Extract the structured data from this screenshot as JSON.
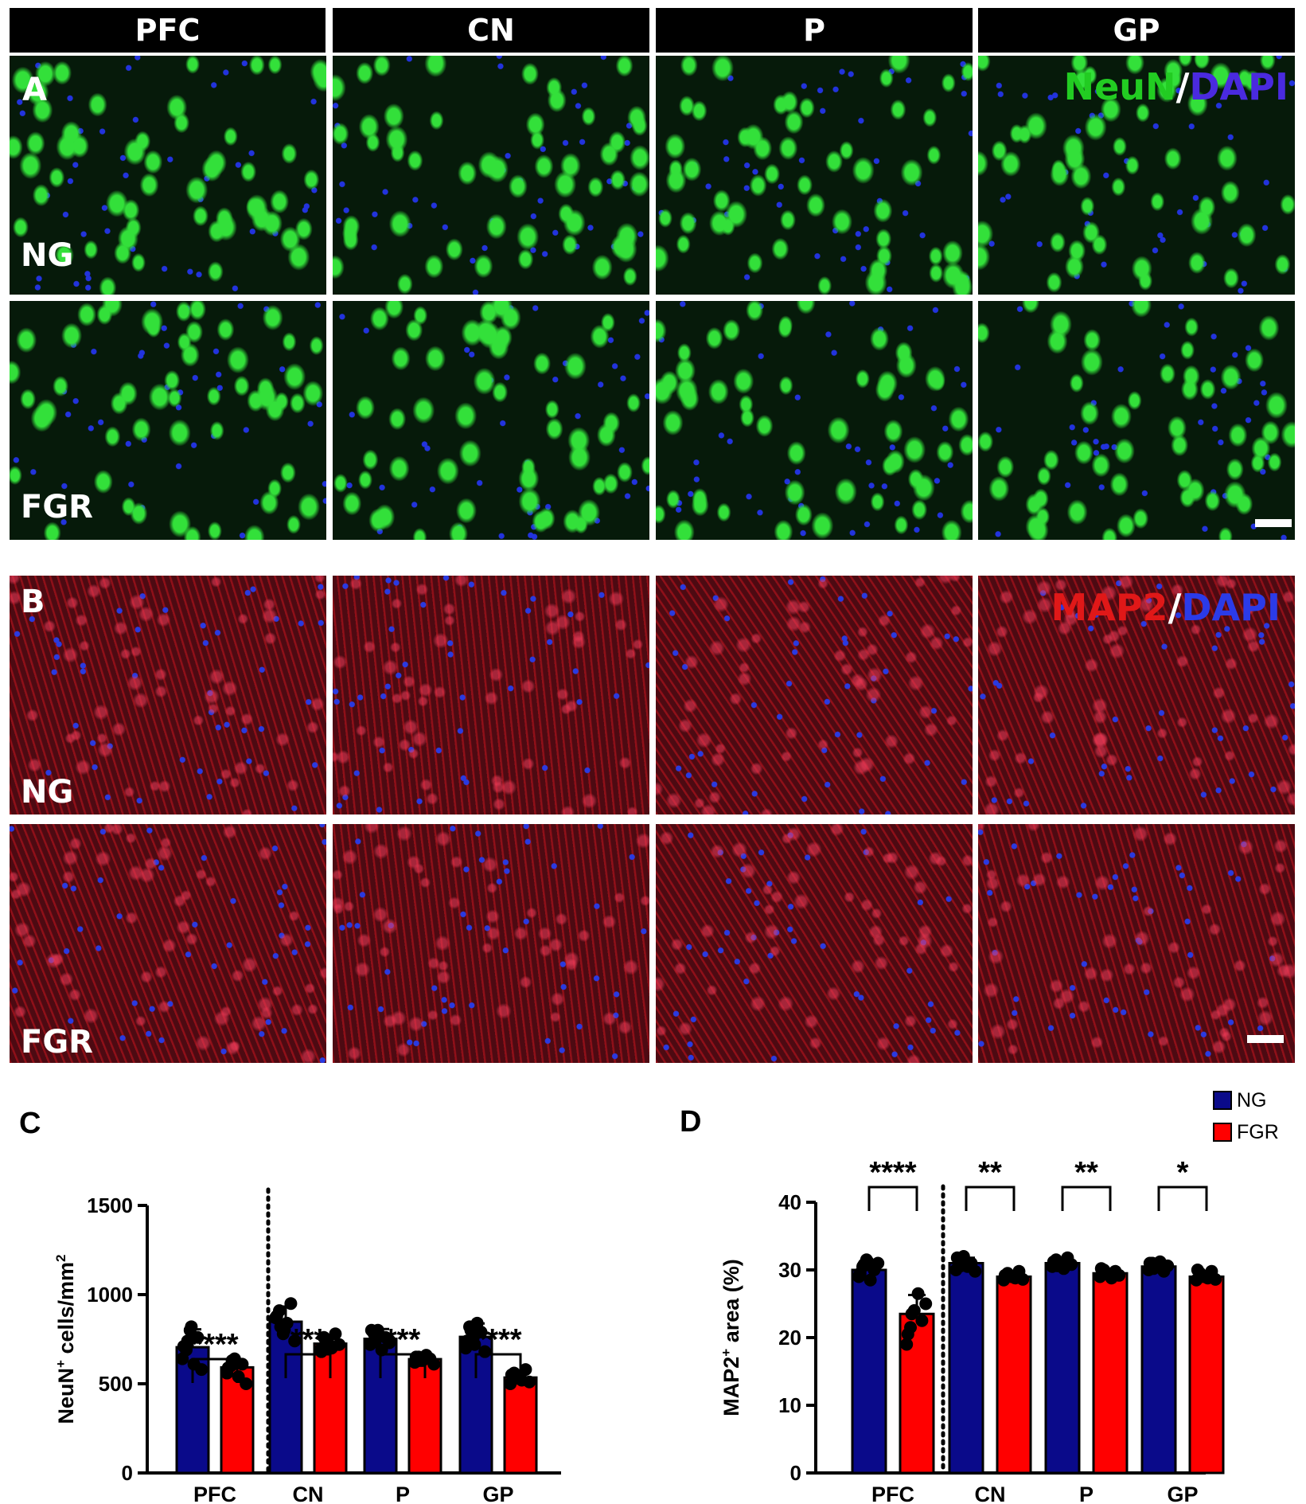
{
  "region_headers": [
    "PFC",
    "CN",
    "P",
    "GP"
  ],
  "panel_A": {
    "label": "A",
    "stain_1": "NeuN",
    "stain_sep": "/",
    "stain_2": "DAPI",
    "row_1": "NG",
    "row_2": "FGR",
    "colors": {
      "stain_1": "#22cc22",
      "stain_2": "#4a2adf",
      "background": "#061a0a",
      "cells": "#33e03a",
      "nuclei": "#2233dd"
    }
  },
  "panel_B": {
    "label": "B",
    "stain_1": "MAP2",
    "stain_sep": "/",
    "stain_2": "DAPI",
    "row_1": "NG",
    "row_2": "FGR",
    "colors": {
      "stain_1": "#e01818",
      "stain_2": "#2b3be8",
      "background": "#4a0a12",
      "fibers": "#c8141e",
      "nuclei": "#2a3ae0"
    }
  },
  "legend": {
    "items": [
      {
        "label": "NG",
        "color": "#0a0a8a"
      },
      {
        "label": "FGR",
        "color": "#ff0000"
      }
    ]
  },
  "chart_data": [
    {
      "panel": "C",
      "type": "bar",
      "categories": [
        "PFC",
        "CN",
        "P",
        "GP"
      ],
      "ylabel_main": "NeuN",
      "ylabel_sup": "+",
      "ylabel_rest": " cells/mm",
      "ylabel_sup2": "2",
      "ylim": [
        0,
        1500
      ],
      "yticks": [
        0,
        500,
        1000,
        1500
      ],
      "series": [
        {
          "name": "NG",
          "color": "#0a0a8a",
          "values": [
            705,
            848,
            752,
            763
          ]
        },
        {
          "name": "FGR",
          "color": "#ff0000",
          "values": [
            592,
            725,
            638,
            535
          ]
        }
      ],
      "errors": {
        "NG": [
          100,
          85,
          55,
          75
        ],
        "FGR": [
          40,
          45,
          25,
          35
        ]
      },
      "points": {
        "NG": [
          [
            640,
            690,
            800,
            610,
            760,
            580,
            710,
            740,
            820
          ],
          [
            870,
            910,
            780,
            840,
            950,
            740,
            880,
            820,
            800
          ],
          [
            720,
            780,
            800,
            690,
            760,
            730,
            800,
            740,
            770
          ],
          [
            700,
            820,
            760,
            840,
            790,
            680,
            740,
            800,
            720
          ]
        ],
        "FGR": [
          [
            560,
            600,
            640,
            540,
            610,
            500,
            590,
            630
          ],
          [
            690,
            760,
            740,
            700,
            780,
            720,
            680,
            750
          ],
          [
            620,
            650,
            630,
            660,
            640,
            610,
            650,
            630
          ],
          [
            500,
            560,
            540,
            520,
            580,
            510,
            550,
            530
          ]
        ]
      },
      "significance": [
        "****",
        "***",
        "***",
        "****"
      ],
      "legend": "top-right",
      "grid": false
    },
    {
      "panel": "D",
      "type": "bar",
      "categories": [
        "PFC",
        "CN",
        "P",
        "GP"
      ],
      "ylabel_main": "MAP2",
      "ylabel_sup": "+",
      "ylabel_rest": " area (%)",
      "ylim": [
        0,
        40
      ],
      "yticks": [
        0,
        10,
        20,
        30,
        40
      ],
      "series": [
        {
          "name": "NG",
          "color": "#0a0a8a",
          "values": [
            30.0,
            31.0,
            31.0,
            30.5
          ]
        },
        {
          "name": "FGR",
          "color": "#ff0000",
          "values": [
            23.5,
            29.0,
            29.5,
            29.0
          ]
        }
      ],
      "errors": {
        "NG": [
          0.9,
          0.8,
          0.6,
          0.7
        ],
        "FGR": [
          2.8,
          0.6,
          0.6,
          0.6
        ]
      },
      "points": {
        "NG": [
          [
            29.0,
            30.5,
            31.5,
            28.5,
            30.0,
            31.0,
            29.5,
            30.8,
            31.2
          ],
          [
            30.0,
            31.5,
            32.0,
            30.5,
            31.0,
            29.8,
            31.8,
            30.6,
            31.2
          ],
          [
            30.5,
            31.5,
            31.0,
            30.2,
            31.8,
            30.8,
            31.2,
            30.6
          ],
          [
            30.0,
            31.0,
            30.5,
            31.2,
            29.8,
            30.6,
            31.0,
            30.2
          ]
        ],
        "FGR": [
          [
            19.0,
            21.5,
            24.0,
            26.5,
            22.5,
            25.0,
            20.5,
            23.5
          ],
          [
            28.5,
            29.5,
            29.0,
            28.8,
            29.8,
            28.6,
            29.2
          ],
          [
            29.0,
            30.0,
            29.5,
            28.8,
            29.8,
            29.2,
            30.2
          ],
          [
            28.5,
            29.5,
            29.0,
            28.8,
            29.8,
            28.6,
            30.0
          ]
        ]
      },
      "significance": [
        "****",
        "**",
        "**",
        "*"
      ],
      "legend": "top-right",
      "grid": false
    }
  ]
}
